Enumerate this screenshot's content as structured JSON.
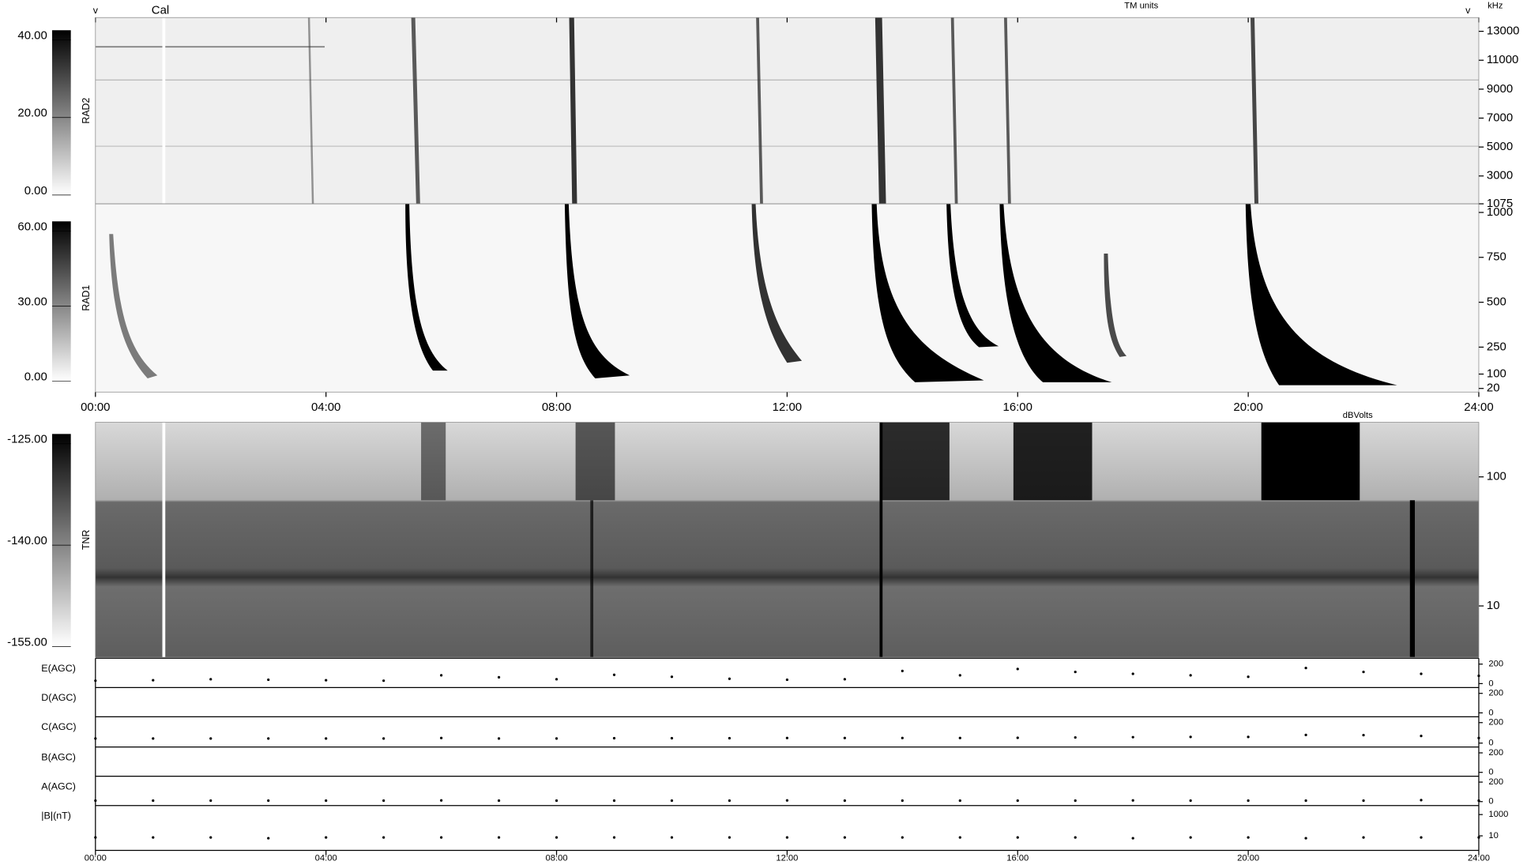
{
  "chart_data": {
    "type": "multi-panel",
    "header": {
      "units_label": "TM units",
      "freq_unit": "kHz",
      "cal_label": "Cal",
      "marker": "v",
      "tnr_unit": "dBVolts"
    },
    "xlim": [
      0,
      24
    ],
    "xticks": [
      {
        "value": 0,
        "label": "00:00"
      },
      {
        "value": 4,
        "label": "04:00"
      },
      {
        "value": 8,
        "label": "08:00"
      },
      {
        "value": 12,
        "label": "12:00"
      },
      {
        "value": 16,
        "label": "16:00"
      },
      {
        "value": 20,
        "label": "20:00"
      },
      {
        "value": 24,
        "label": "24:00"
      }
    ],
    "panels": [
      {
        "type": "spectrogram",
        "label": "RAD2",
        "ylim": [
          1075,
          13950
        ],
        "yticks": [
          13000,
          11000,
          9000,
          7000,
          5000,
          3000,
          1075
        ],
        "colorbar": {
          "lim": [
            0,
            40
          ],
          "ticks": [
            {
              "value": 40,
              "label": "40.00"
            },
            {
              "value": 20,
              "label": "20.00"
            },
            {
              "value": 0,
              "label": "0.00"
            }
          ]
        }
      },
      {
        "type": "spectrogram",
        "label": "RAD1",
        "ylim": [
          0,
          1048
        ],
        "yticks": [
          1000,
          750,
          500,
          250,
          100,
          20
        ],
        "colorbar": {
          "lim": [
            0,
            60
          ],
          "ticks": [
            {
              "value": 60,
              "label": "60.00"
            },
            {
              "value": 30,
              "label": "30.00"
            },
            {
              "value": 0,
              "label": "0.00"
            }
          ]
        }
      },
      {
        "type": "spectrogram",
        "label": "TNR",
        "log": true,
        "ylim": [
          4,
          265
        ],
        "yticks": [
          100,
          10
        ],
        "colorbar": {
          "lim": [
            -155,
            -125
          ],
          "ticks": [
            {
              "value": -125,
              "label": "-125.00"
            },
            {
              "value": -140,
              "label": "-140.00"
            },
            {
              "value": -155,
              "label": "-155.00"
            }
          ]
        }
      }
    ],
    "agc_x": [
      0,
      1,
      2,
      3,
      4,
      5,
      6,
      7,
      8,
      9,
      10,
      11,
      12,
      13,
      14,
      15,
      16,
      17,
      18,
      19,
      20,
      21,
      22,
      23,
      24
    ],
    "agc": [
      {
        "type": "scatter",
        "label": "E(AGC)",
        "ylim": [
          0,
          200
        ],
        "yticks": [
          200,
          0
        ],
        "values": [
          30,
          35,
          45,
          40,
          35,
          30,
          85,
          65,
          45,
          90,
          70,
          50,
          40,
          45,
          130,
          85,
          150,
          120,
          100,
          85,
          70,
          160,
          120,
          100,
          80
        ]
      },
      {
        "type": "scatter",
        "label": "D(AGC)",
        "ylim": [
          0,
          200
        ],
        "yticks": [
          200,
          0
        ],
        "values": [
          null,
          null,
          null,
          null,
          null,
          null,
          null,
          null,
          null,
          null,
          null,
          null,
          null,
          null,
          null,
          null,
          null,
          null,
          null,
          null,
          null,
          null,
          null,
          null,
          null
        ]
      },
      {
        "type": "scatter",
        "label": "C(AGC)",
        "ylim": [
          0,
          200
        ],
        "yticks": [
          200,
          0
        ],
        "values": [
          45,
          45,
          45,
          45,
          45,
          45,
          50,
          45,
          45,
          48,
          48,
          48,
          50,
          50,
          50,
          50,
          52,
          55,
          58,
          60,
          60,
          80,
          78,
          70,
          50
        ]
      },
      {
        "type": "scatter",
        "label": "B(AGC)",
        "ylim": [
          0,
          200
        ],
        "yticks": [
          200,
          0
        ],
        "values": [
          null,
          null,
          null,
          null,
          null,
          null,
          null,
          null,
          null,
          null,
          null,
          null,
          null,
          null,
          null,
          null,
          null,
          null,
          null,
          null,
          null,
          null,
          null,
          null,
          null
        ]
      },
      {
        "type": "scatter",
        "label": "A(AGC)",
        "ylim": [
          0,
          200
        ],
        "yticks": [
          200,
          0
        ],
        "values": [
          10,
          10,
          10,
          10,
          10,
          10,
          12,
          10,
          10,
          10,
          10,
          10,
          12,
          10,
          10,
          10,
          10,
          10,
          12,
          10,
          10,
          10,
          10,
          15,
          10
        ]
      },
      {
        "type": "scatter",
        "label": "|B|(nT)",
        "log": true,
        "ylim": [
          1,
          2000
        ],
        "yticks": [
          1000,
          10
        ],
        "values": [
          7,
          7,
          7,
          6,
          7,
          7,
          7,
          7,
          7,
          7,
          7,
          7,
          7,
          7,
          7,
          7,
          7,
          7,
          6,
          7,
          7,
          6,
          7,
          7,
          7
        ]
      }
    ]
  }
}
